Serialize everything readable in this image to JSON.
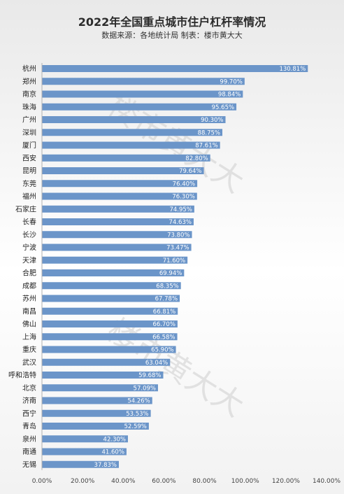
{
  "title": "2022年全国重点城市住户杠杆率情况",
  "subtitle": "数据来源：各地统计局   制表：楼市黄大大",
  "watermark": "楼市黄大大",
  "colors": {
    "bar": "#6b95c9",
    "axis": "#b0b0b0"
  },
  "chart_data": {
    "type": "bar",
    "orientation": "horizontal",
    "categories": [
      "杭州",
      "郑州",
      "南京",
      "珠海",
      "广州",
      "深圳",
      "厦门",
      "西安",
      "昆明",
      "东莞",
      "福州",
      "石家庄",
      "长春",
      "长沙",
      "宁波",
      "天津",
      "合肥",
      "成都",
      "苏州",
      "南昌",
      "佛山",
      "上海",
      "重庆",
      "武汉",
      "呼和浩特",
      "北京",
      "济南",
      "西宁",
      "青岛",
      "泉州",
      "南通",
      "无锡"
    ],
    "values": [
      130.81,
      99.7,
      98.84,
      95.65,
      90.3,
      88.75,
      87.61,
      82.8,
      79.64,
      76.4,
      76.3,
      74.95,
      74.63,
      73.8,
      73.47,
      71.6,
      69.94,
      68.35,
      67.78,
      66.81,
      66.7,
      66.58,
      65.9,
      63.04,
      59.68,
      57.09,
      54.26,
      53.53,
      52.59,
      42.3,
      41.6,
      37.83
    ],
    "value_labels": [
      "130.81%",
      "99.70%",
      "98.84%",
      "95.65%",
      "90.30%",
      "88.75%",
      "87.61%",
      "82.80%",
      "79.64%",
      "76.40%",
      "76.30%",
      "74.95%",
      "74.63%",
      "73.80%",
      "73.47%",
      "71.60%",
      "69.94%",
      "68.35%",
      "67.78%",
      "66.81%",
      "66.70%",
      "66.58%",
      "65.90%",
      "63.04%",
      "59.68%",
      "57.09%",
      "54.26%",
      "53.53%",
      "52.59%",
      "42.30%",
      "41.60%",
      "37.83%"
    ],
    "xlim": [
      0,
      140
    ],
    "xticks": [
      0,
      20,
      40,
      60,
      80,
      100,
      120,
      140
    ],
    "xtick_labels": [
      "0.00%",
      "20.00%",
      "40.00%",
      "60.00%",
      "80.00%",
      "100.00%",
      "120.00%",
      "140.00%"
    ],
    "grid": false,
    "legend": "none"
  }
}
